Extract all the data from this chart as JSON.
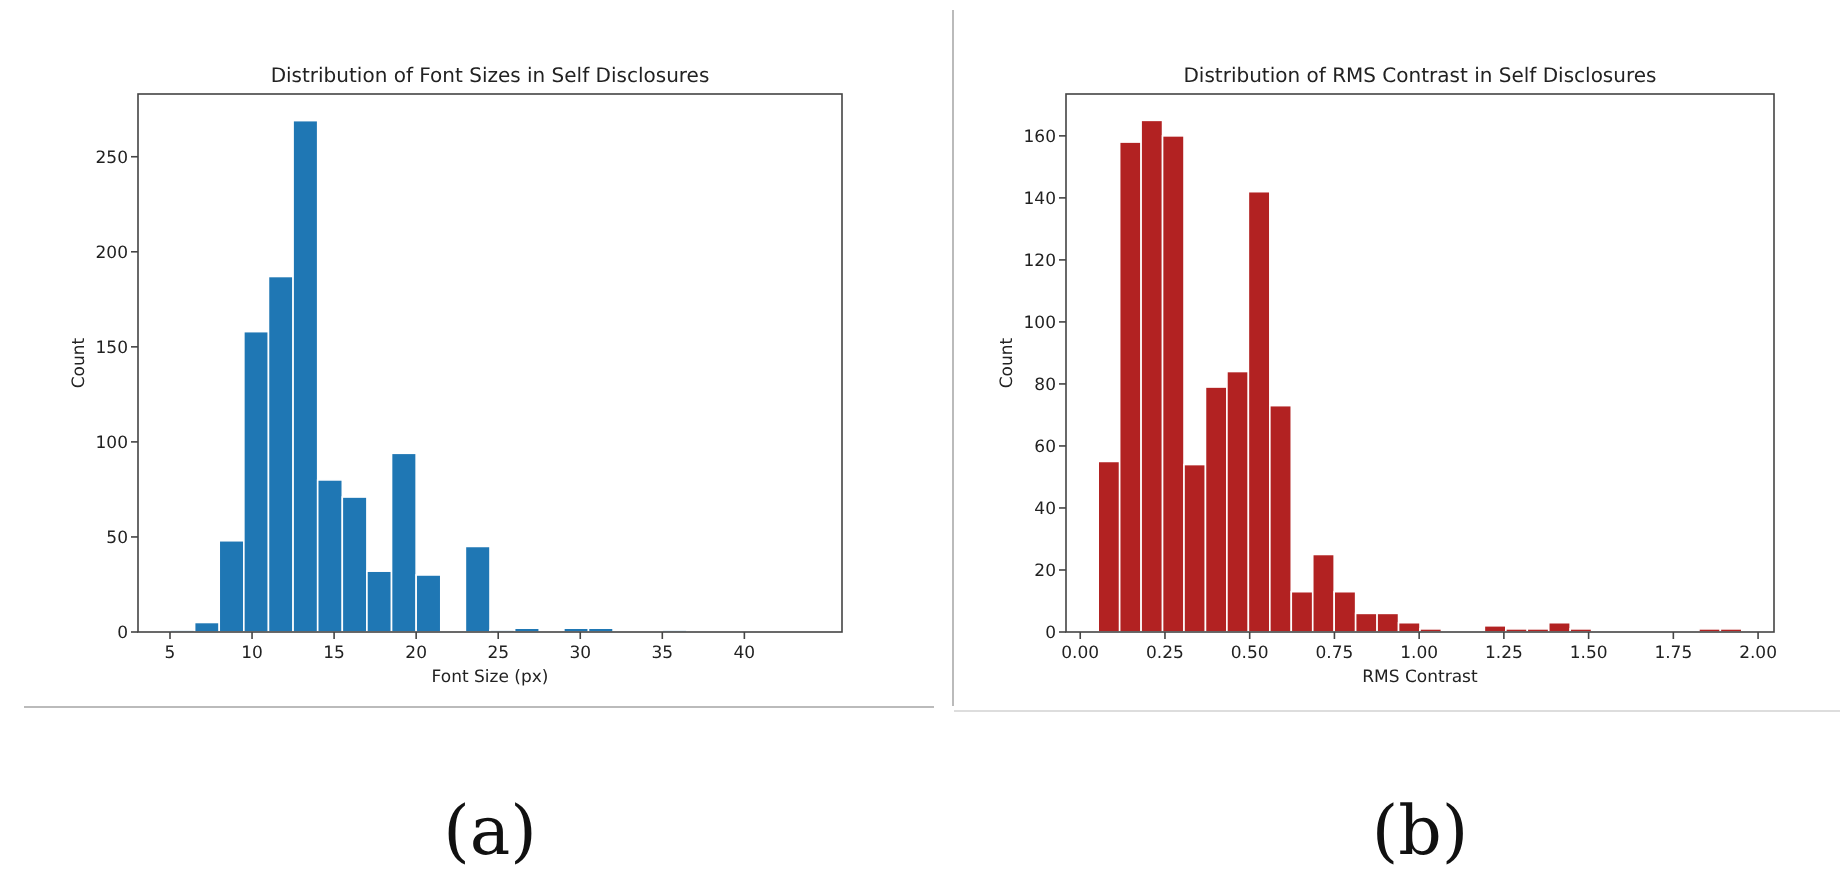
{
  "chart_data": [
    {
      "type": "histogram",
      "title": "Distribution of Font Sizes in Self Disclosures",
      "xlabel": "Font Size (px)",
      "ylabel": "Count",
      "color": "#1f77b4",
      "bins": [
        5,
        6.5,
        8,
        9.5,
        11,
        12.5,
        14,
        15.5,
        17,
        18.5,
        20,
        21.5,
        23,
        24.5,
        26,
        27.5,
        29,
        30.5,
        32,
        33.5,
        35,
        36.5,
        38,
        39.5,
        41,
        42.5,
        44
      ],
      "values": [
        1,
        5,
        48,
        158,
        187,
        269,
        80,
        71,
        32,
        94,
        30,
        0,
        45,
        1,
        2,
        0,
        2,
        2,
        0,
        0,
        1,
        0,
        0,
        0,
        0,
        0
      ],
      "xlim": [
        3.05,
        45.95
      ],
      "xticks": [
        5,
        10,
        15,
        20,
        25,
        30,
        35,
        40
      ],
      "ylim": [
        0,
        283
      ],
      "yticks": [
        0,
        50,
        100,
        150,
        200,
        250
      ],
      "annotations": [
        "(a)"
      ]
    },
    {
      "type": "histogram",
      "title": "Distribution of RMS Contrast in Self Disclosures",
      "xlabel": "RMS Contrast",
      "ylabel": "Count",
      "color": "#b22222",
      "bins": [
        0.053,
        0.1163,
        0.1796,
        0.2429,
        0.3062,
        0.3695,
        0.4328,
        0.4961,
        0.5594,
        0.6227,
        0.686,
        0.7493,
        0.8126,
        0.8759,
        0.9392,
        1.0025,
        1.0658,
        1.1291,
        1.1924,
        1.2557,
        1.319,
        1.3823,
        1.4456,
        1.5089,
        1.5722,
        1.6355,
        1.6988,
        1.7621,
        1.8254,
        1.8887,
        1.952
      ],
      "values": [
        55,
        158,
        165,
        160,
        54,
        79,
        84,
        142,
        73,
        13,
        25,
        13,
        6,
        6,
        3,
        1,
        0,
        0,
        2,
        1,
        1,
        3,
        1,
        0,
        0,
        0,
        0,
        0,
        1,
        1
      ],
      "xlim": [
        -0.042,
        2.047
      ],
      "xticks": [
        {
          "value": 0,
          "label": "0.00"
        },
        {
          "value": 0.25,
          "label": "0.25"
        },
        {
          "value": 0.5,
          "label": "0.50"
        },
        {
          "value": 0.75,
          "label": "0.75"
        },
        {
          "value": 1,
          "label": "1.00"
        },
        {
          "value": 1.25,
          "label": "1.25"
        },
        {
          "value": 1.5,
          "label": "1.50"
        },
        {
          "value": 1.75,
          "label": "1.75"
        },
        {
          "value": 2,
          "label": "2.00"
        }
      ],
      "ylim": [
        0,
        173.5
      ],
      "yticks": [
        0,
        20,
        40,
        60,
        80,
        100,
        120,
        140,
        160
      ],
      "annotations": [
        "(b)"
      ]
    }
  ]
}
